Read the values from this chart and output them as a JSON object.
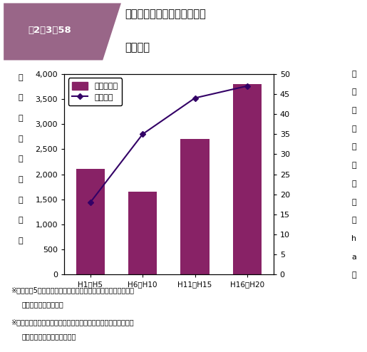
{
  "categories": [
    "H1～H5",
    "H6～H10",
    "H11～H15",
    "H16～H20"
  ],
  "bar_values": [
    2100,
    1650,
    2700,
    3800
  ],
  "line_values": [
    18,
    35,
    44,
    47
  ],
  "bar_color": "#882266",
  "line_color": "#330066",
  "bar_ylim": [
    0,
    4000
  ],
  "line_ylim": [
    0,
    50
  ],
  "bar_yticks": [
    0,
    500,
    1000,
    1500,
    2000,
    2500,
    3000,
    3500,
    4000
  ],
  "line_yticks": [
    0,
    5,
    10,
    15,
    20,
    25,
    30,
    35,
    40,
    45,
    50
  ],
  "legend_bar": "水害被害額",
  "legend_line": "水害密度",
  "title_box_text": "図2－3－58",
  "title_main_line1": "一般資産水害被害及び水害密",
  "title_main_line2": "度の推移",
  "left_ylabel_chars": [
    "水",
    "害",
    "被",
    "害",
    "額",
    "（",
    "億",
    "円",
    "）"
  ],
  "right_ylabel_chars": [
    "水",
    "害",
    "密",
    "度",
    "（",
    "百",
    "万",
    "円",
    "／",
    "h",
    "a",
    "）"
  ],
  "footnote1a": "※値は過去5箇年の平均値である。（国土交通省河川局「水害統",
  "footnote1b": "計」より内閣府作成）",
  "footnote2a": "※水害密度：水害区域面積（水害による「宅地その他」の浸水面",
  "footnote2b": "積）当たりの一般資産被害額",
  "title_bg_color": "#996688",
  "header_bg_color": "#ddbbcc",
  "bg_color": "#ffffff"
}
